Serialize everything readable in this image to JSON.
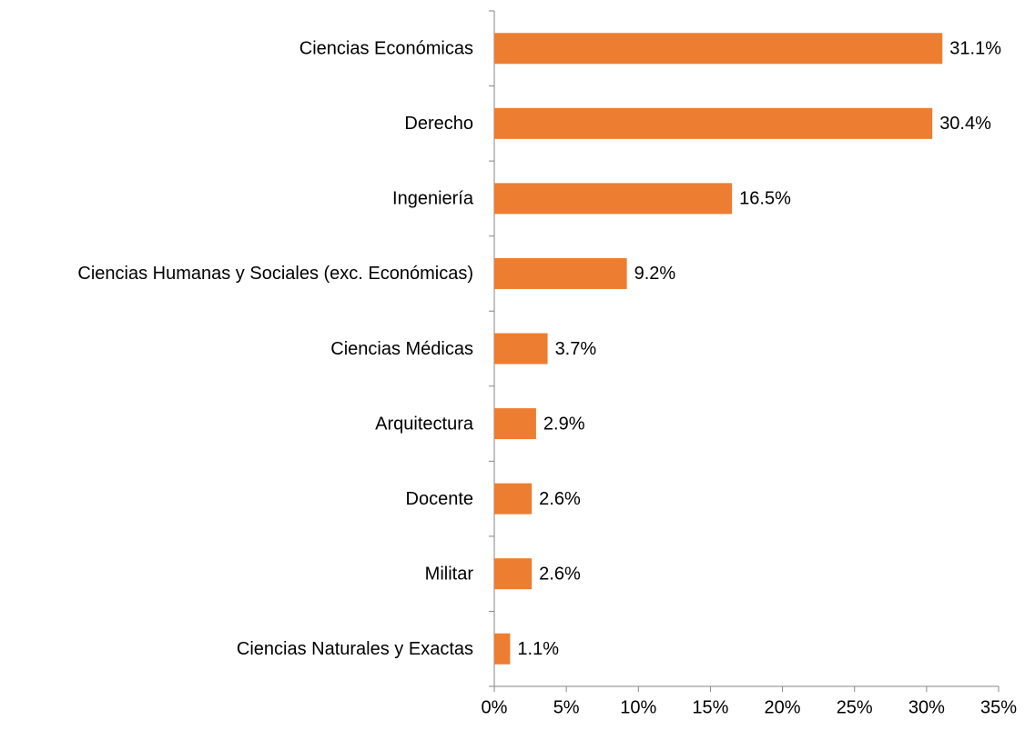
{
  "chart_data": {
    "type": "hbar",
    "categories": [
      "Ciencias Económicas",
      "Derecho",
      "Ingeniería",
      "Ciencias Humanas y Sociales (exc. Económicas)",
      "Ciencias Médicas",
      "Arquitectura",
      "Docente",
      "Militar",
      "Ciencias Naturales y Exactas"
    ],
    "values": [
      31.1,
      30.4,
      16.5,
      9.2,
      3.7,
      2.9,
      2.6,
      2.6,
      1.1
    ],
    "value_labels": [
      "31.1%",
      "30.4%",
      "16.5%",
      "9.2%",
      "3.7%",
      "2.9%",
      "2.6%",
      "2.6%",
      "1.1%"
    ],
    "color": "#ed7d31",
    "xlim": [
      0,
      35
    ],
    "xticks": [
      {
        "value": 0,
        "label": "0%"
      },
      {
        "value": 5,
        "label": "5%"
      },
      {
        "value": 10,
        "label": "10%"
      },
      {
        "value": 15,
        "label": "15%"
      },
      {
        "value": 20,
        "label": "20%"
      },
      {
        "value": 25,
        "label": "25%"
      },
      {
        "value": 30,
        "label": "30%"
      },
      {
        "value": 35,
        "label": "35%"
      }
    ],
    "grid": false
  }
}
